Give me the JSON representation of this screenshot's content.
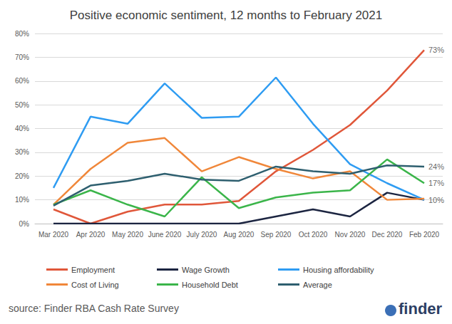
{
  "chart_data": {
    "type": "line",
    "title": "Positive economic sentiment, 12 months to February 2021",
    "categories": [
      "Mar 2020",
      "Apr 2020",
      "May 2020",
      "June 2020",
      "July 2020",
      "Aug 2020",
      "Sep 2020",
      "Oct 2020",
      "Nov 2020",
      "Dec 2020",
      "Feb 2020"
    ],
    "series": [
      {
        "name": "Employment",
        "color": "#e0573a",
        "values": [
          6,
          0,
          5,
          8,
          8,
          9.5,
          22,
          31,
          41.5,
          56,
          73
        ]
      },
      {
        "name": "Wage Growth",
        "color": "#1c2541",
        "values": [
          0,
          0,
          0,
          0,
          0,
          0,
          3,
          6,
          3,
          13,
          10
        ]
      },
      {
        "name": "Housing affordability",
        "color": "#2f9cf2",
        "values": [
          15,
          45,
          42,
          59,
          44.5,
          45,
          61.5,
          42,
          25,
          17,
          10
        ]
      },
      {
        "name": "Cost of Living",
        "color": "#f0873a",
        "values": [
          8,
          23,
          34,
          36,
          22,
          28,
          23,
          19,
          22,
          10,
          10.5
        ]
      },
      {
        "name": "Household Debt",
        "color": "#3bb54a",
        "values": [
          8,
          14,
          8,
          3,
          19.5,
          6.5,
          11,
          13,
          14,
          27,
          17
        ]
      },
      {
        "name": "Average",
        "color": "#2e5f6f",
        "values": [
          7.5,
          16,
          18,
          21,
          18.5,
          18,
          24,
          22,
          21,
          24.5,
          24
        ]
      }
    ],
    "annotations": [
      {
        "x": "Feb 2020",
        "y": 73,
        "label": "73%"
      },
      {
        "x": "Feb 2020",
        "y": 24,
        "label": "24%"
      },
      {
        "x": "Feb 2020",
        "y": 17,
        "label": "17%"
      },
      {
        "x": "Feb 2020",
        "y": 10,
        "label": "10%"
      }
    ],
    "ylim": [
      0,
      80
    ],
    "yticks": [
      {
        "value": 0,
        "label": "0%"
      },
      {
        "value": 10,
        "label": "10%"
      },
      {
        "value": 20,
        "label": "20%"
      },
      {
        "value": 30,
        "label": "30%"
      },
      {
        "value": 40,
        "label": "40%"
      },
      {
        "value": 50,
        "label": "50%"
      },
      {
        "value": 60,
        "label": "60%"
      },
      {
        "value": 70,
        "label": "70%"
      },
      {
        "value": 80,
        "label": "80%"
      }
    ],
    "grid": true,
    "legend": "bottom",
    "source": "source: Finder RBA Cash Rate Survey",
    "logo": "finder"
  }
}
